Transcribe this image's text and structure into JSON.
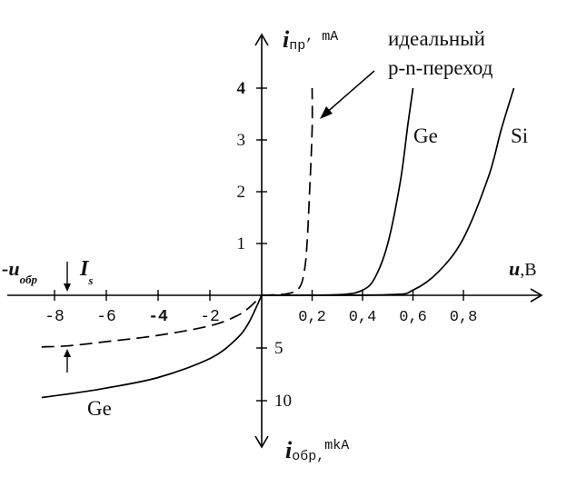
{
  "chart_data": {
    "type": "line",
    "axes": {
      "y_top_label_main": "i",
      "y_top_label_sub": "пр",
      "y_top_unit": ", mA",
      "y_bottom_label_main": "i",
      "y_bottom_label_sub": "обр,",
      "y_bottom_unit": "mkA",
      "x_right_label_main": "u",
      "x_right_unit": ",B",
      "x_left_label_main": "-u",
      "x_left_label_sub": "обр"
    },
    "forward": {
      "xlim": [
        0,
        1.1
      ],
      "ylim": [
        0,
        4
      ],
      "ticks_x": [
        0.2,
        0.4,
        0.6,
        0.8
      ],
      "tick_labels_x": [
        "0,2",
        "0,4",
        "0,6",
        "0,8"
      ],
      "ticks_y": [
        1,
        2,
        3,
        4
      ],
      "tick_labels_y": [
        "1",
        "2",
        "3",
        "4"
      ]
    },
    "reverse": {
      "xlim": [
        -9,
        0
      ],
      "ylim_mkA": [
        0,
        10
      ],
      "ticks_x": [
        -8,
        -6,
        -4,
        -2
      ],
      "tick_labels_x": [
        "-8",
        "-6",
        "-4",
        "-2"
      ],
      "ticks_y": [
        5,
        10
      ],
      "tick_labels_y": [
        "5",
        "10"
      ]
    },
    "annotations": {
      "ideal_line1": "идеальный",
      "ideal_line2": "p-n-переход",
      "ge_forward": "Ge",
      "si_forward": "Si",
      "ge_reverse": "Ge",
      "is_main": "I",
      "is_sub": "s"
    },
    "series": [
      {
        "style": "dashed",
        "region": "forward",
        "x": [
          0.0,
          0.1,
          0.15,
          0.17,
          0.18,
          0.19,
          0.2,
          0.2
        ],
        "y": [
          0.0,
          0.03,
          0.15,
          0.5,
          1.0,
          2.0,
          3.2,
          4.0
        ]
      },
      {
        "label": "Ge",
        "region": "forward",
        "x": [
          0.0,
          0.3,
          0.4,
          0.45,
          0.5,
          0.55,
          0.58,
          0.6
        ],
        "y": [
          0.0,
          0.01,
          0.1,
          0.35,
          1.0,
          2.2,
          3.3,
          4.0
        ]
      },
      {
        "label": "Si",
        "region": "forward",
        "x": [
          0.0,
          0.5,
          0.6,
          0.7,
          0.8,
          0.9,
          0.95,
          1.0
        ],
        "y": [
          0.0,
          0.01,
          0.1,
          0.45,
          1.1,
          2.3,
          3.2,
          4.0
        ]
      },
      {
        "style": "dashed",
        "region": "reverse",
        "x": [
          -8.5,
          -7.5,
          -6.0,
          -4.0,
          -2.0,
          -1.0,
          -0.5,
          0.0
        ],
        "y": [
          4.9,
          4.8,
          4.4,
          3.8,
          2.9,
          2.0,
          1.2,
          0.0
        ]
      },
      {
        "label": "Ge",
        "region": "reverse",
        "x": [
          -8.5,
          -7.0,
          -6.0,
          -4.0,
          -2.0,
          -1.0,
          -0.5,
          0.0
        ],
        "y": [
          9.7,
          9.2,
          8.8,
          7.8,
          6.0,
          4.2,
          2.6,
          0.0
        ]
      }
    ]
  }
}
